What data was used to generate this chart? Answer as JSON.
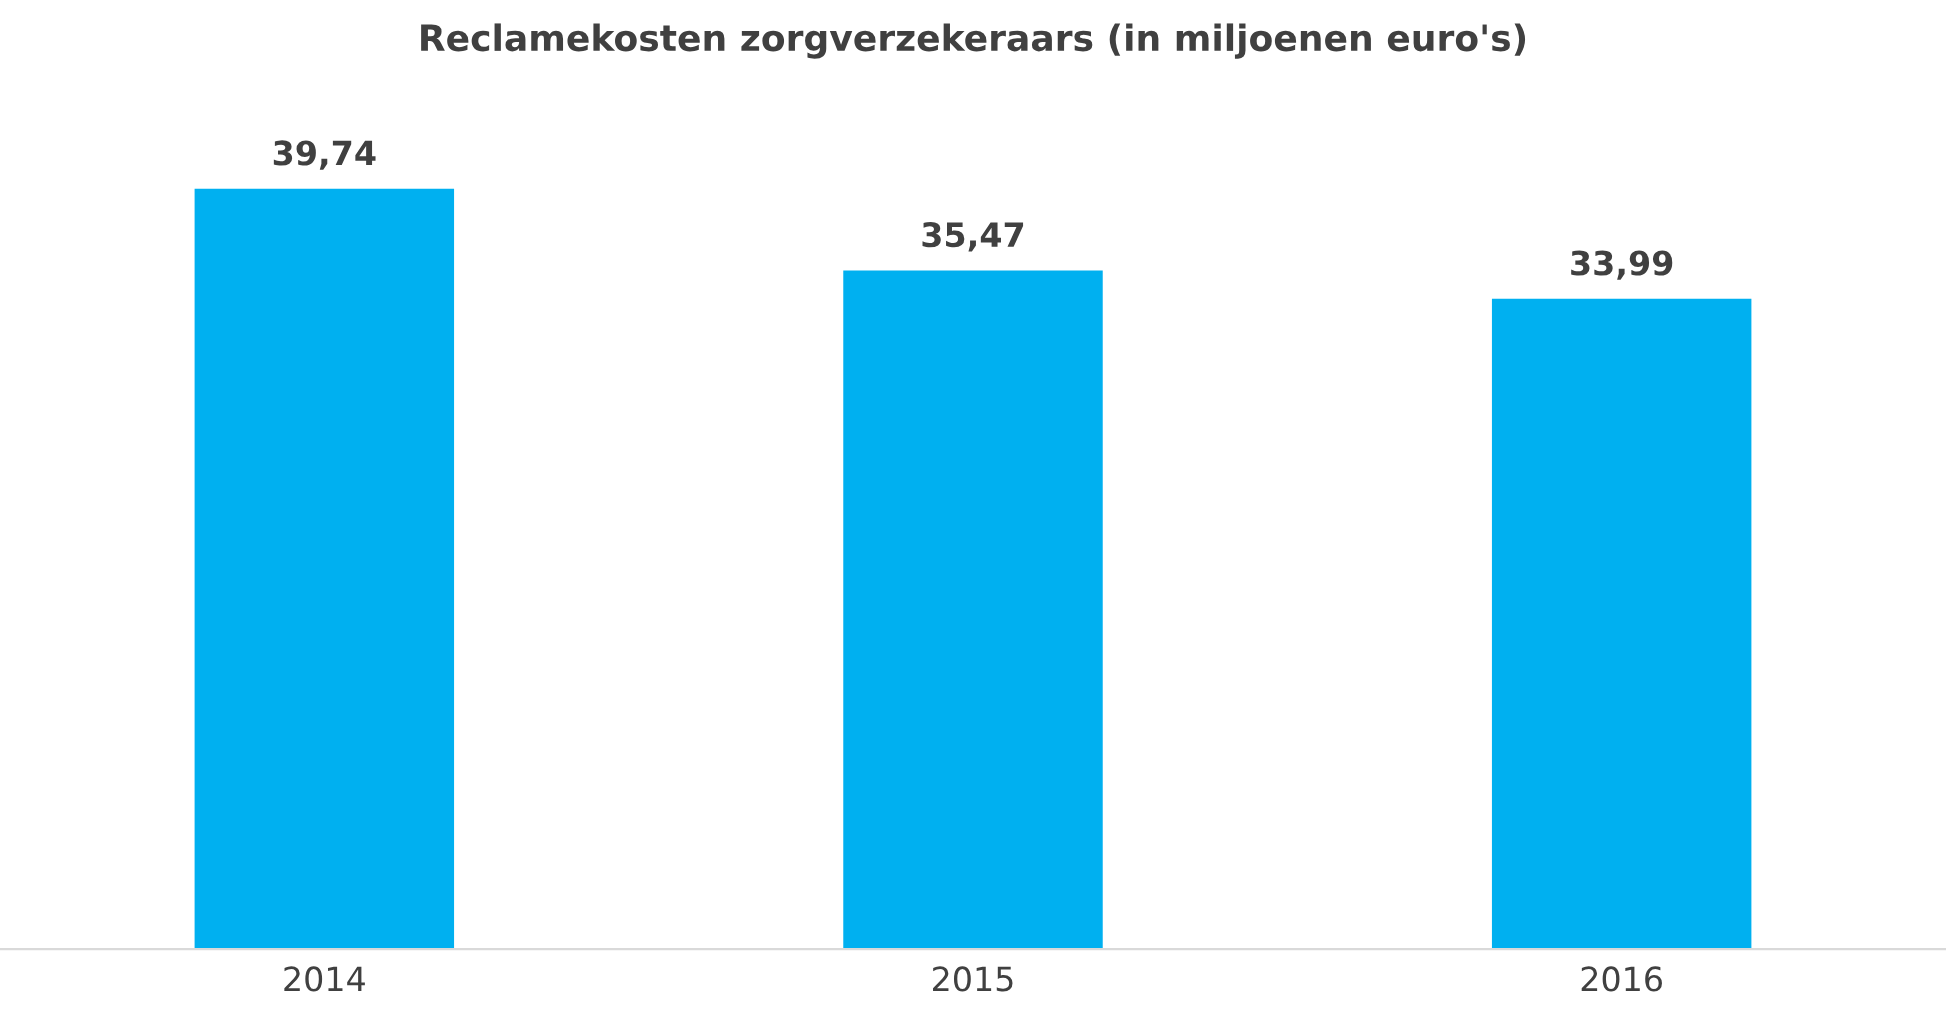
{
  "chart_data": {
    "type": "bar",
    "title": "Reclamekosten zorgverzekeraars (in miljoenen euro's)",
    "categories": [
      "2014",
      "2015",
      "2016"
    ],
    "values": [
      39.74,
      35.47,
      33.99
    ],
    "value_labels": [
      "39,74",
      "35,47",
      "33,99"
    ],
    "color": "#00b0f0",
    "grid": false,
    "legend": false
  }
}
